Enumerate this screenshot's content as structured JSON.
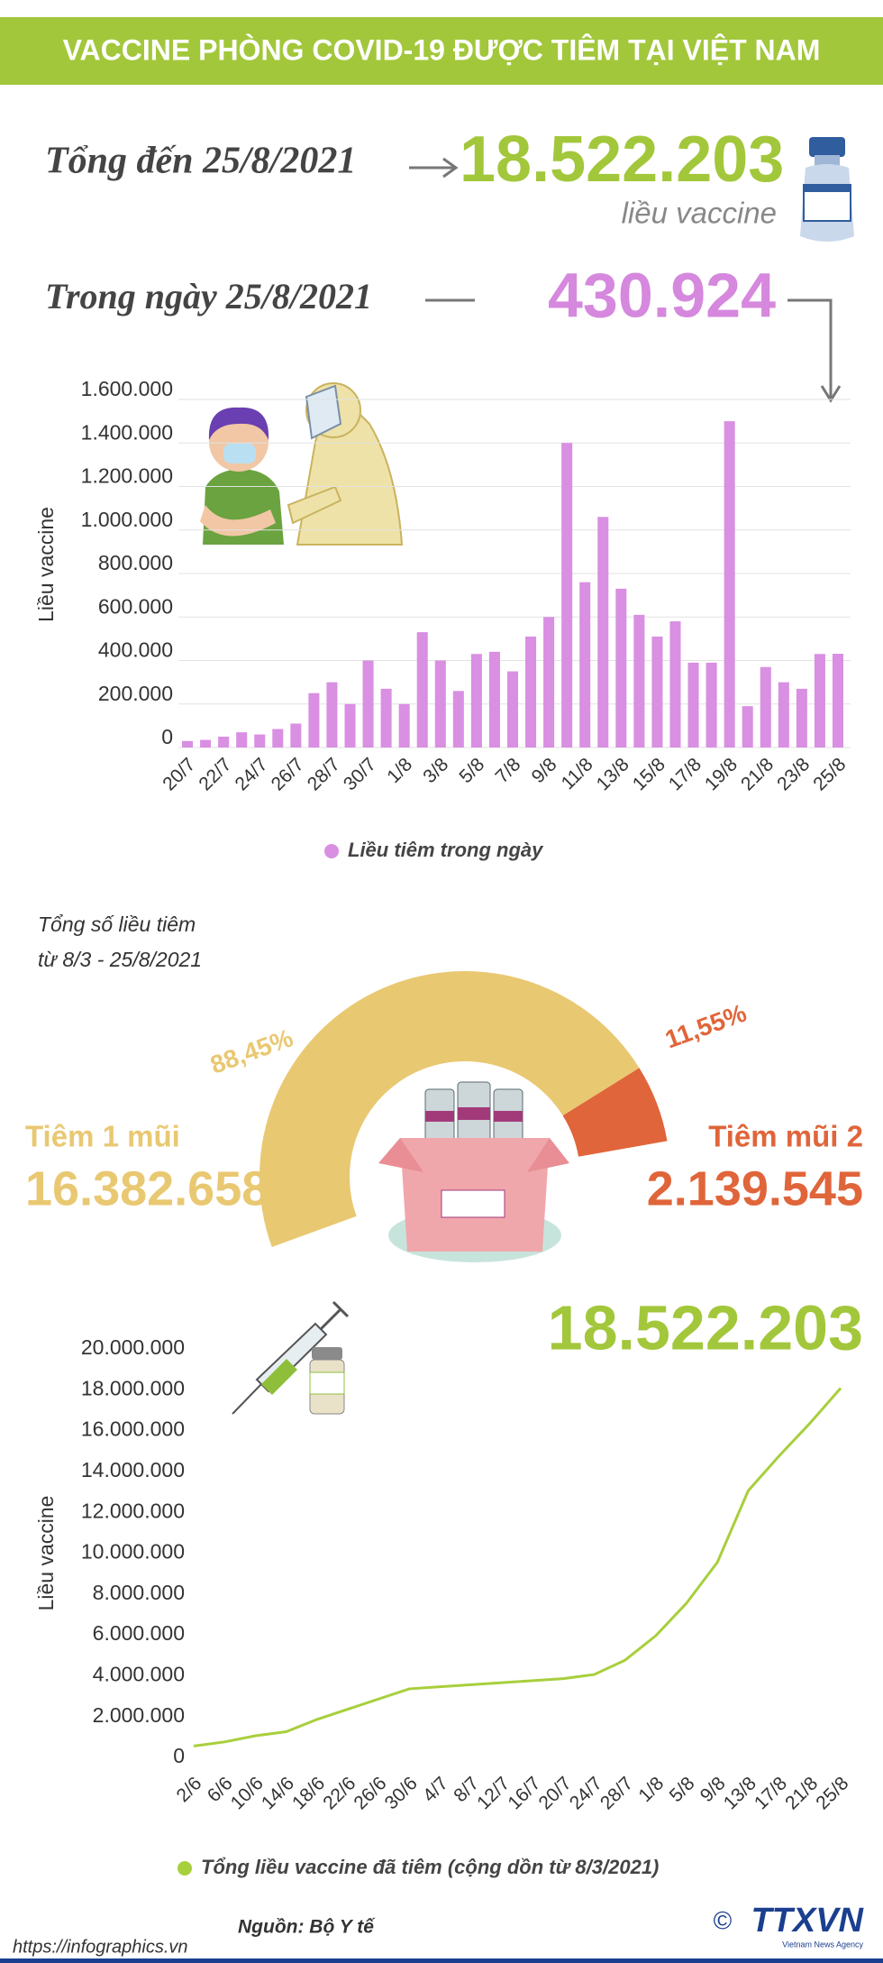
{
  "header": {
    "title": "VACCINE PHÒNG COVID-19 ĐƯỢC TIÊM TẠI VIỆT NAM"
  },
  "summary": {
    "total_label": "Tổng đến 25/8/2021",
    "total_value": "18.522.203",
    "total_unit": "liều vaccine",
    "daily_label": "Trong ngày 25/8/2021",
    "daily_value": "430.924"
  },
  "chart_data": [
    {
      "type": "bar",
      "y_label": "Liều vaccine",
      "categories": [
        "20/7",
        null,
        "22/7",
        null,
        "24/7",
        null,
        "26/7",
        null,
        "28/7",
        null,
        "30/7",
        null,
        "1/8",
        null,
        "3/8",
        null,
        "5/8",
        null,
        "7/8",
        null,
        "9/8",
        null,
        "11/8",
        null,
        "13/8",
        null,
        "15/8",
        null,
        "17/8",
        null,
        "19/8",
        null,
        "21/8",
        null,
        "23/8",
        null,
        "25/8"
      ],
      "series": [
        {
          "name": "Liều tiêm trong ngày",
          "color": "#d98fe2",
          "values": [
            30000,
            35000,
            50000,
            70000,
            60000,
            85000,
            110000,
            250000,
            300000,
            200000,
            400000,
            270000,
            200000,
            530000,
            400000,
            260000,
            430000,
            440000,
            350000,
            510000,
            600000,
            1400000,
            760000,
            1060000,
            730000,
            610000,
            510000,
            580000,
            390000,
            390000,
            1500000,
            190000,
            370000,
            300000,
            270000,
            430000,
            430924
          ]
        }
      ],
      "ylim": [
        0,
        1600000
      ],
      "yticks": [
        0,
        {
          "value": 200000,
          "label": "200.000"
        },
        {
          "value": 400000,
          "label": "400.000"
        },
        {
          "value": 600000,
          "label": "600.000"
        },
        {
          "value": 800000,
          "label": "800.000"
        },
        {
          "value": 1000000,
          "label": "1.000.000"
        },
        {
          "value": 1200000,
          "label": "1.200.000"
        },
        {
          "value": 1400000,
          "label": "1.400.000"
        },
        {
          "value": 1600000,
          "label": "1.600.000"
        }
      ],
      "grid": true,
      "legend": "bottom"
    },
    {
      "type": "pie",
      "title": "Tổng số liều tiêm",
      "subtitle": "từ 8/3 - 25/8/2021",
      "categories": [
        "Tiêm 1 mũi",
        "Tiêm mũi 2"
      ],
      "values": [
        88.45,
        11.55
      ],
      "value_labels": [
        "88,45%",
        "11,55%"
      ],
      "colors": [
        "#e9c872",
        "#e0653a"
      ],
      "counts": [
        "16.382.658",
        "2.139.545"
      ]
    },
    {
      "type": "line",
      "annotation": "18.522.203",
      "y_label": "Liều vaccine",
      "categories": [
        "2/6",
        "6/6",
        "10/6",
        "14/6",
        "18/6",
        "22/6",
        "26/6",
        "30/6",
        "4/7",
        "8/7",
        "12/7",
        "16/7",
        "20/7",
        "24/7",
        "28/7",
        "1/8",
        "5/8",
        "9/8",
        "13/8",
        "17/8",
        "21/8",
        "25/8"
      ],
      "series": [
        {
          "name": "Tổng liều vaccine đã tiêm (cộng dồn từ 8/3/2021)",
          "color": "#a8cf3c",
          "values": [
            1000000,
            1200000,
            1500000,
            1700000,
            2300000,
            2800000,
            3300000,
            3800000,
            3900000,
            4000000,
            4100000,
            4200000,
            4300000,
            4500000,
            5200000,
            6400000,
            8000000,
            10000000,
            13500000,
            15200000,
            16800000,
            18522203
          ]
        }
      ],
      "ylim": [
        0,
        20000000
      ],
      "yticks": [
        0,
        {
          "value": 2000000,
          "label": "2.000.000"
        },
        {
          "value": 4000000,
          "label": "4.000.000"
        },
        {
          "value": 6000000,
          "label": "6.000.000"
        },
        {
          "value": 8000000,
          "label": "8.000.000"
        },
        {
          "value": 10000000,
          "label": "10.000.000"
        },
        {
          "value": 12000000,
          "label": "12.000.000"
        },
        {
          "value": 14000000,
          "label": "14.000.000"
        },
        {
          "value": 16000000,
          "label": "16.000.000"
        },
        {
          "value": 18000000,
          "label": "18.000.000"
        },
        {
          "value": 20000000,
          "label": "20.000.000"
        }
      ],
      "grid": false,
      "legend": "bottom"
    }
  ],
  "footer": {
    "source": "Nguồn: Bộ Y tế",
    "url": "https://infographics.vn",
    "copyright": "©",
    "logo": "TTXVN",
    "logo_sub": "Vietnam News Agency"
  }
}
